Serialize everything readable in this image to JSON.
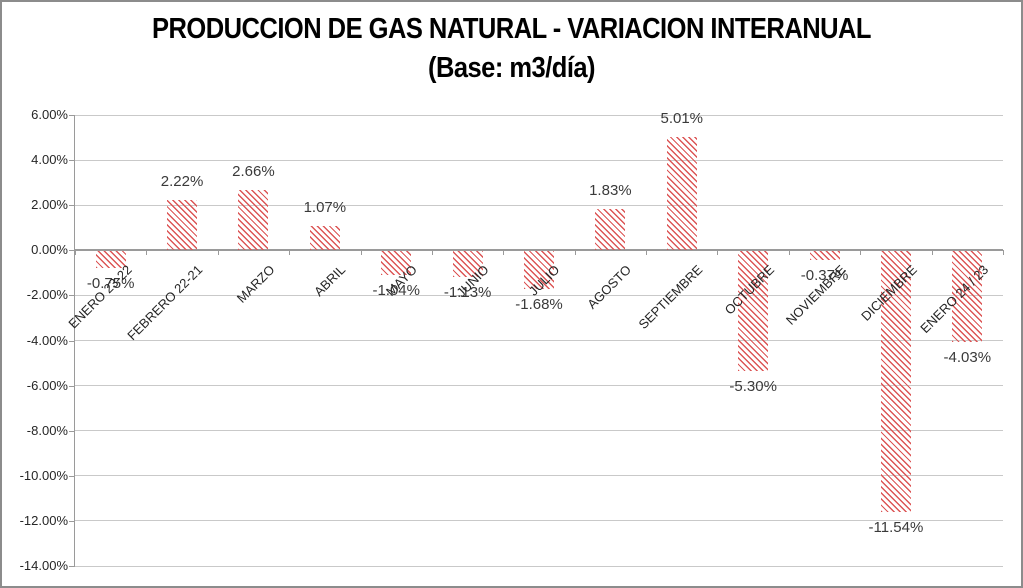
{
  "chart_data": {
    "type": "bar",
    "title": "PRODUCCION DE GAS NATURAL - VARIACION INTERANUAL",
    "subtitle": "(Base: m3/día)",
    "categories": [
      "ENERO 23-22",
      "FEBRERO 22-21",
      "MARZO",
      "ABRIL",
      "MAYO",
      "JUNIO",
      "JULIO",
      "AGOSTO",
      "SEPTIEMBRE",
      "OCTUBRE",
      "NOVIEMBRE",
      "DICIEMBRE",
      "ENERO 24 / 23"
    ],
    "values": [
      -0.75,
      2.22,
      2.66,
      1.07,
      -1.04,
      -1.13,
      -1.68,
      1.83,
      5.01,
      -5.3,
      -0.37,
      -11.54,
      -4.03
    ],
    "data_labels": [
      "-0.75%",
      "2.22%",
      "2.66%",
      "1.07%",
      "-1.04%",
      "-1.13%",
      "-1.68%",
      "1.83%",
      "5.01%",
      "-5.30%",
      "-0.37%",
      "-11.54%",
      "-4.03%"
    ],
    "y_ticks": [
      {
        "value": 6,
        "label": "6.00%"
      },
      {
        "value": 4,
        "label": "4.00%"
      },
      {
        "value": 2,
        "label": "2.00%"
      },
      {
        "value": 0,
        "label": "0.00%"
      },
      {
        "value": -2,
        "label": "-2.00%"
      },
      {
        "value": -4,
        "label": "-4.00%"
      },
      {
        "value": -6,
        "label": "-6.00%"
      },
      {
        "value": -8,
        "label": "-8.00%"
      },
      {
        "value": -10,
        "label": "-10.00%"
      },
      {
        "value": -12,
        "label": "-12.00%"
      },
      {
        "value": -14,
        "label": "-14.00%"
      }
    ],
    "ylim": [
      -14,
      6
    ],
    "xlabel": "",
    "ylabel": "",
    "grid": true,
    "legend_position": "none",
    "bar_color": "#dc5555",
    "bar_pattern": "diagonal-down-hatch",
    "gridline_color": "#c9c9c9",
    "axis_color": "#9a9a9a",
    "tick_label_color": "#262626",
    "data_label_color": "#3a3a3a",
    "background_color": "#ffffff",
    "border_color": "#8c8c8c"
  }
}
